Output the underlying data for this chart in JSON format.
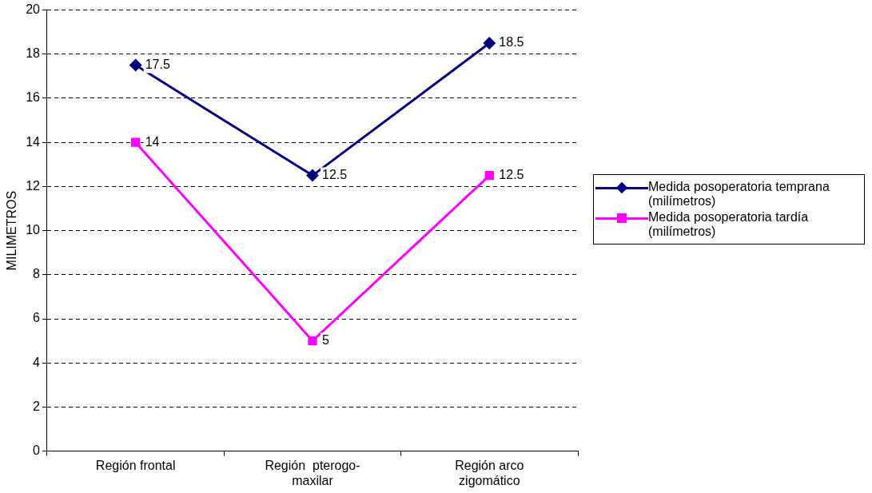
{
  "chart_data": {
    "type": "line",
    "ylabel": "MILIMETROS",
    "categories": [
      "Región frontal",
      "Región  pterogo-maxilar",
      "Región arco zigomático"
    ],
    "series": [
      {
        "name": "Medida posoperatoria temprana    (milímetros)",
        "color": "#000080",
        "values": [
          17.5,
          12.5,
          18.5
        ],
        "marker": "diamond"
      },
      {
        "name": "Medida posoperatoria tardía (milímetros)",
        "color": "#ff00ff",
        "values": [
          14,
          5,
          12.5
        ],
        "marker": "square"
      }
    ],
    "ylim": [
      0,
      20
    ],
    "yticks": [
      0,
      2,
      4,
      6,
      8,
      10,
      12,
      14,
      16,
      18,
      20
    ],
    "grid": "y",
    "legend": "right",
    "data_labels": true
  }
}
